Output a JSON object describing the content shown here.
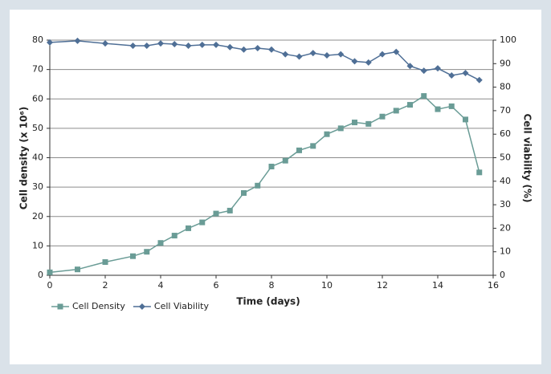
{
  "chart_data": {
    "type": "line",
    "xlabel": "Time (days)",
    "ylabel": "Cell density (x 10⁶)",
    "y2label": "Cell viability (%)",
    "x": [
      0,
      1,
      2,
      3,
      3.5,
      4,
      4.5,
      5,
      5.5,
      6,
      6.5,
      7,
      7.5,
      8,
      8.5,
      9,
      9.5,
      10,
      10.5,
      11,
      11.5,
      12,
      12.5,
      13,
      13.5,
      14,
      14.5,
      15,
      15.5
    ],
    "series": [
      {
        "name": "Cell Density",
        "color": "#6a9c96",
        "marker": "square",
        "values": [
          1,
          2,
          4.5,
          6.5,
          8,
          11,
          13.5,
          16,
          18,
          21,
          22,
          28,
          30.5,
          37,
          39,
          42.5,
          44,
          48,
          50,
          52,
          51.5,
          54,
          56,
          58,
          61,
          56.5,
          57.5,
          53,
          35
        ]
      },
      {
        "name": "Cell Viability",
        "color": "#4f6f96",
        "marker": "diamond",
        "axis": "y2",
        "values": [
          99,
          99.7,
          98.6,
          97.6,
          97.6,
          98.6,
          98.3,
          97.6,
          98,
          98,
          97,
          96,
          96.6,
          96,
          94,
          93,
          94.5,
          93.5,
          94,
          91,
          90.5,
          94,
          95,
          89,
          87,
          88,
          85,
          86,
          83
        ]
      }
    ],
    "xlim": [
      0,
      16
    ],
    "xticks": [
      0,
      2,
      4,
      6,
      8,
      10,
      12,
      14,
      16
    ],
    "ylim": [
      0,
      80
    ],
    "yticks": [
      0,
      10,
      20,
      30,
      40,
      50,
      60,
      70,
      80
    ],
    "y2lim": [
      0,
      100
    ],
    "y2ticks": [
      0,
      10,
      20,
      30,
      40,
      50,
      60,
      70,
      80,
      90,
      100
    ],
    "grid": true,
    "legend": "bottom-left"
  }
}
